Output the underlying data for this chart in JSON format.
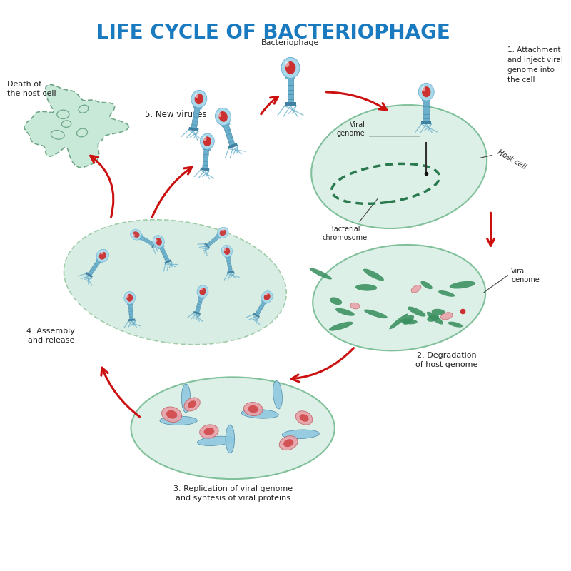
{
  "title": "LIFE CYCLE OF BACTERIOPHAGE",
  "title_color": "#1a7abf",
  "title_fontsize": 20,
  "bg_color": "#ffffff",
  "labels": {
    "bacteriophage": "Bacteriophage",
    "step1": "1. Attachment\nand inject viral\ngenome into\nthe cell",
    "viral_genome_1": "Viral\ngenome",
    "host_cell": "Host cell",
    "bacterial_chromosome": "Bacterial\nchromosome",
    "step2": "2. Degradation\nof host genome",
    "viral_genome_2": "Viral\ngenome",
    "step3": "3. Replication of viral genome\nand syntesis of viral proteins",
    "step4": "4. Assembly\nand release",
    "step5": "5. New viruses",
    "death": "Death of\nthe host cell"
  },
  "cell_color": "#ddf0e8",
  "cell_edge_color": "#80c09a",
  "cell_edge_color2": "#a0cca8",
  "phage_head_color": "#a8d8ea",
  "phage_head_dark": "#6ab0d0",
  "phage_body_color": "#6ab0cc",
  "phage_body_dark": "#4080a0",
  "phage_red_color": "#cc3030",
  "phage_red_light": "#e06060",
  "arrow_color": "#cc1010",
  "genome_color": "#2a7a50",
  "genome_frag_color": "#3a9060",
  "pink_color": "#e8a0a8",
  "pink_edge": "#c06060",
  "blue_rect_color": "#90c8e0",
  "death_cell_color": "#c8e8d8",
  "death_cell_edge": "#70a888"
}
